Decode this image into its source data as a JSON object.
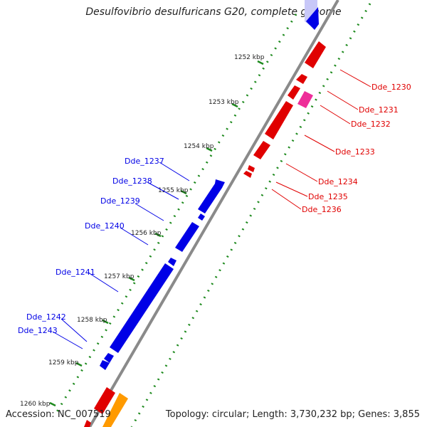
{
  "title": "Desulfovibrio desulfuricans G20, complete genome",
  "accession": "Accession: NC_007519",
  "topology": "Topology: circular; Length: 3,730,232 bp; Genes: 3,855",
  "colors": {
    "forward": "#e00000",
    "reverse": "#0000e6",
    "pink": "#ee2d99",
    "orange": "#ff9a00",
    "lavender": "#c8c8f8",
    "dots": "#1e8a1e",
    "backbone": "#888888"
  },
  "kbp_ticks": [
    "1252 kbp",
    "1253 kbp",
    "1254 kbp",
    "1255 kbp",
    "1256 kbp",
    "1257 kbp",
    "1258 kbp",
    "1259 kbp",
    "1260 kbp"
  ],
  "right_labels": [
    "Dde_1230",
    "Dde_1231",
    "Dde_1232",
    "Dde_1233",
    "Dde_1234",
    "Dde_1235",
    "Dde_1236"
  ],
  "left_labels": [
    "Dde_1237",
    "Dde_1238",
    "Dde_1239",
    "Dde_1240",
    "Dde_1241",
    "Dde_1242",
    "Dde_1243"
  ]
}
